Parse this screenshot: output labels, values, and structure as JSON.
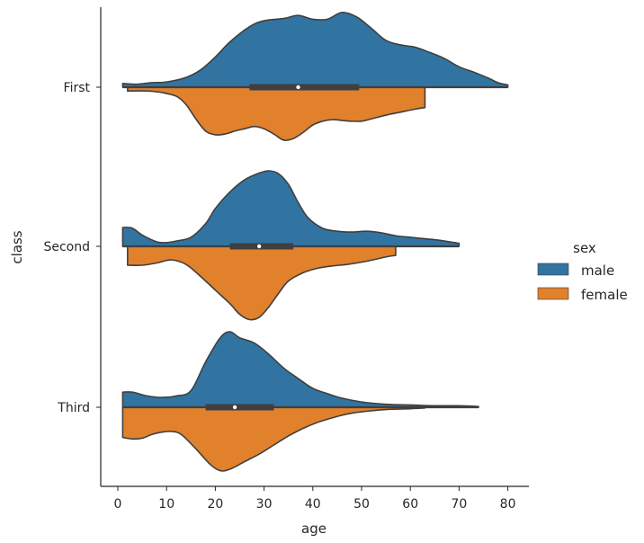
{
  "chart_data": {
    "type": "violin",
    "split": true,
    "title": "",
    "xlabel": "age",
    "ylabel": "class",
    "xlim": [
      -4,
      84
    ],
    "xticks": [
      0,
      10,
      20,
      30,
      40,
      50,
      60,
      70,
      80
    ],
    "categories": [
      "First",
      "Second",
      "Third"
    ],
    "legend": {
      "title": "sex",
      "position": "right",
      "entries": [
        {
          "name": "male",
          "color": "#3274a1"
        },
        {
          "name": "female",
          "color": "#e1812c"
        }
      ]
    },
    "series": [
      {
        "name": "male",
        "color": "#3274a1",
        "side": "upper",
        "violins": [
          {
            "category": "First",
            "range": [
              1,
              80
            ],
            "density": [
              [
                1,
                0.05
              ],
              [
                4,
                0.04
              ],
              [
                7,
                0.06
              ],
              [
                10,
                0.07
              ],
              [
                14,
                0.13
              ],
              [
                17,
                0.23
              ],
              [
                20,
                0.4
              ],
              [
                23,
                0.6
              ],
              [
                27,
                0.8
              ],
              [
                30,
                0.88
              ],
              [
                34,
                0.91
              ],
              [
                37,
                0.95
              ],
              [
                40,
                0.9
              ],
              [
                43,
                0.9
              ],
              [
                46,
                0.99
              ],
              [
                49,
                0.93
              ],
              [
                52,
                0.78
              ],
              [
                55,
                0.62
              ],
              [
                58,
                0.56
              ],
              [
                61,
                0.53
              ],
              [
                64,
                0.46
              ],
              [
                67,
                0.38
              ],
              [
                70,
                0.27
              ],
              [
                73,
                0.2
              ],
              [
                76,
                0.12
              ],
              [
                78,
                0.06
              ],
              [
                80,
                0.03
              ]
            ]
          },
          {
            "category": "Second",
            "range": [
              1,
              70
            ],
            "density": [
              [
                1,
                0.25
              ],
              [
                3,
                0.24
              ],
              [
                5,
                0.15
              ],
              [
                8,
                0.06
              ],
              [
                10,
                0.05
              ],
              [
                12,
                0.07
              ],
              [
                15,
                0.12
              ],
              [
                18,
                0.3
              ],
              [
                20,
                0.5
              ],
              [
                23,
                0.72
              ],
              [
                26,
                0.88
              ],
              [
                29,
                0.97
              ],
              [
                31,
                1.0
              ],
              [
                33,
                0.96
              ],
              [
                35,
                0.82
              ],
              [
                37,
                0.58
              ],
              [
                39,
                0.38
              ],
              [
                42,
                0.24
              ],
              [
                45,
                0.2
              ],
              [
                48,
                0.19
              ],
              [
                51,
                0.2
              ],
              [
                54,
                0.18
              ],
              [
                57,
                0.14
              ],
              [
                60,
                0.12
              ],
              [
                63,
                0.1
              ],
              [
                66,
                0.08
              ],
              [
                70,
                0.04
              ]
            ]
          },
          {
            "category": "Third",
            "range": [
              1,
              74
            ],
            "density": [
              [
                1,
                0.2
              ],
              [
                3,
                0.2
              ],
              [
                6,
                0.15
              ],
              [
                9,
                0.13
              ],
              [
                12,
                0.15
              ],
              [
                15,
                0.22
              ],
              [
                18,
                0.6
              ],
              [
                21,
                0.92
              ],
              [
                23,
                1.0
              ],
              [
                25,
                0.92
              ],
              [
                28,
                0.85
              ],
              [
                31,
                0.7
              ],
              [
                34,
                0.52
              ],
              [
                37,
                0.38
              ],
              [
                40,
                0.25
              ],
              [
                43,
                0.18
              ],
              [
                46,
                0.12
              ],
              [
                50,
                0.07
              ],
              [
                55,
                0.04
              ],
              [
                60,
                0.03
              ],
              [
                65,
                0.02
              ],
              [
                70,
                0.02
              ],
              [
                74,
                0.01
              ]
            ]
          }
        ]
      },
      {
        "name": "female",
        "color": "#e1812c",
        "side": "lower",
        "violins": [
          {
            "category": "First",
            "range": [
              2,
              63
            ],
            "density": [
              [
                2,
                0.05
              ],
              [
                6,
                0.05
              ],
              [
                9,
                0.07
              ],
              [
                12,
                0.12
              ],
              [
                14,
                0.23
              ],
              [
                16,
                0.42
              ],
              [
                18,
                0.58
              ],
              [
                20,
                0.63
              ],
              [
                22,
                0.62
              ],
              [
                24,
                0.58
              ],
              [
                26,
                0.55
              ],
              [
                28,
                0.52
              ],
              [
                30,
                0.55
              ],
              [
                32,
                0.62
              ],
              [
                34,
                0.7
              ],
              [
                36,
                0.68
              ],
              [
                38,
                0.6
              ],
              [
                40,
                0.5
              ],
              [
                42,
                0.45
              ],
              [
                44,
                0.43
              ],
              [
                46,
                0.44
              ],
              [
                48,
                0.45
              ],
              [
                50,
                0.45
              ],
              [
                52,
                0.42
              ],
              [
                55,
                0.37
              ],
              [
                58,
                0.33
              ],
              [
                61,
                0.29
              ],
              [
                63,
                0.27
              ]
            ]
          },
          {
            "category": "Second",
            "range": [
              2,
              57
            ],
            "density": [
              [
                2,
                0.25
              ],
              [
                5,
                0.25
              ],
              [
                8,
                0.22
              ],
              [
                11,
                0.18
              ],
              [
                14,
                0.24
              ],
              [
                17,
                0.4
              ],
              [
                20,
                0.58
              ],
              [
                23,
                0.76
              ],
              [
                25,
                0.9
              ],
              [
                27,
                0.97
              ],
              [
                29,
                0.94
              ],
              [
                31,
                0.8
              ],
              [
                33,
                0.62
              ],
              [
                35,
                0.46
              ],
              [
                38,
                0.35
              ],
              [
                41,
                0.29
              ],
              [
                44,
                0.26
              ],
              [
                47,
                0.24
              ],
              [
                50,
                0.21
              ],
              [
                53,
                0.17
              ],
              [
                55,
                0.14
              ],
              [
                57,
                0.12
              ]
            ]
          },
          {
            "category": "Third",
            "range": [
              1,
              63
            ],
            "density": [
              [
                1,
                0.4
              ],
              [
                3,
                0.42
              ],
              [
                5,
                0.41
              ],
              [
                7,
                0.36
              ],
              [
                9,
                0.33
              ],
              [
                11,
                0.32
              ],
              [
                13,
                0.36
              ],
              [
                16,
                0.55
              ],
              [
                19,
                0.76
              ],
              [
                21,
                0.84
              ],
              [
                23,
                0.82
              ],
              [
                26,
                0.72
              ],
              [
                29,
                0.62
              ],
              [
                32,
                0.5
              ],
              [
                35,
                0.38
              ],
              [
                38,
                0.28
              ],
              [
                41,
                0.2
              ],
              [
                44,
                0.14
              ],
              [
                47,
                0.09
              ],
              [
                50,
                0.06
              ],
              [
                55,
                0.03
              ],
              [
                60,
                0.02
              ],
              [
                63,
                0.01
              ]
            ]
          }
        ]
      }
    ],
    "boxplots": [
      {
        "category": "First",
        "q1": 27,
        "median": 37,
        "q3": 49.5,
        "whisker_low": 1,
        "whisker_high": 80
      },
      {
        "category": "Second",
        "q1": 23,
        "median": 29,
        "q3": 36,
        "whisker_low": 1,
        "whisker_high": 70
      },
      {
        "category": "Third",
        "q1": 18,
        "median": 24,
        "q3": 32,
        "whisker_low": 1,
        "whisker_high": 74
      }
    ]
  }
}
